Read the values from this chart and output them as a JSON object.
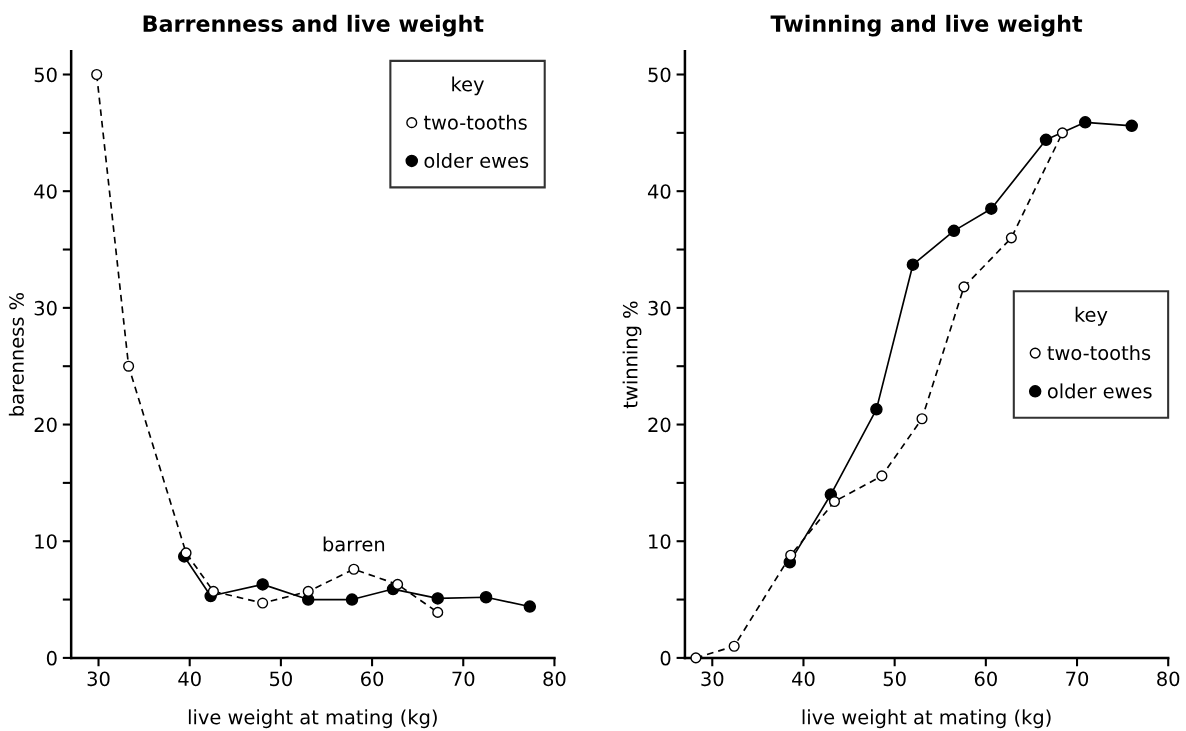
{
  "chart_data": [
    {
      "type": "line",
      "title": "Barrenness and live weight",
      "xlabel": "live weight at mating (kg)",
      "ylabel": "barenness %",
      "legend_title": "key",
      "legend": "top right",
      "grid": false,
      "xlim": [
        27,
        80
      ],
      "xticks": [
        30,
        40,
        50,
        60,
        70,
        80
      ],
      "ylim": [
        0,
        52
      ],
      "yticks": [
        0,
        {
          "value": 5,
          "label": null
        },
        10,
        {
          "value": 15,
          "label": null
        },
        20,
        {
          "value": 25,
          "label": null
        },
        30,
        {
          "value": 35,
          "label": null
        },
        40,
        {
          "value": 45,
          "label": null
        },
        50
      ],
      "annotations": [
        {
          "text": "barren",
          "x": 58,
          "y": 7.6
        }
      ],
      "series": [
        {
          "name": "two-tooths",
          "color": "#000000",
          "marker": "circle",
          "line_style": "dashed",
          "x": [
            29.8,
            33.3,
            39.6,
            42.6,
            48,
            53,
            58,
            62.8,
            67.2
          ],
          "values": [
            50,
            25,
            9.0,
            5.7,
            4.7,
            5.7,
            7.6,
            6.3,
            3.9
          ]
        },
        {
          "name": "older ewes",
          "color": "#000000",
          "marker": "circle",
          "line_style": "solid",
          "x": [
            39.4,
            42.3,
            48,
            53,
            57.8,
            62.3,
            67.2,
            72.5,
            77.3
          ],
          "values": [
            8.7,
            5.3,
            6.3,
            5.0,
            5.0,
            5.9,
            5.1,
            5.2,
            4.4
          ]
        }
      ]
    },
    {
      "type": "line",
      "title": "Twinning and live weight",
      "xlabel": "live weight at mating (kg)",
      "ylabel": "twinning %",
      "legend_title": "key",
      "legend": "right",
      "grid": false,
      "xlim": [
        27,
        80
      ],
      "xticks": [
        30,
        40,
        50,
        60,
        70,
        80
      ],
      "ylim": [
        0,
        52
      ],
      "yticks": [
        0,
        {
          "value": 5,
          "label": null
        },
        10,
        {
          "value": 15,
          "label": null
        },
        20,
        {
          "value": 25,
          "label": null
        },
        30,
        {
          "value": 35,
          "label": null
        },
        40,
        {
          "value": 45,
          "label": null
        },
        50
      ],
      "series": [
        {
          "name": "two-tooths",
          "color": "#000000",
          "marker": "circle",
          "line_style": "dashed",
          "x": [
            28.2,
            32.4,
            38.6,
            43.4,
            48.6,
            53,
            57.6,
            62.8,
            68.4
          ],
          "values": [
            0,
            1.0,
            8.8,
            13.4,
            15.6,
            20.5,
            31.8,
            36,
            45
          ]
        },
        {
          "name": "older ewes",
          "color": "#000000",
          "marker": "circle",
          "line_style": "solid",
          "x": [
            38.5,
            43,
            48,
            52,
            56.5,
            60.6,
            66.6,
            70.9,
            76
          ],
          "values": [
            8.2,
            14,
            21.3,
            33.7,
            36.6,
            38.5,
            44.4,
            45.9,
            45.6
          ]
        }
      ]
    }
  ]
}
